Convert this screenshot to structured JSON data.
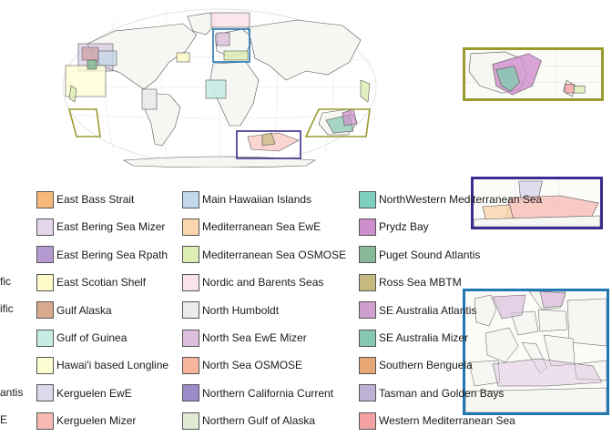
{
  "legend": {
    "clipped_left": [
      "fic",
      "ific",
      "antis",
      "E"
    ],
    "columns": [
      [
        {
          "label": "East Bass Strait",
          "color": "#f7b97a"
        },
        {
          "label": "East Bering Sea Mizer",
          "color": "#e4d5eb"
        },
        {
          "label": "East Bering Sea Rpath",
          "color": "#b59ad1"
        },
        {
          "label": "East Scotian Shelf",
          "color": "#fdfac8"
        },
        {
          "label": "Gulf Alaska",
          "color": "#d9a98f"
        },
        {
          "label": "Gulf of Guinea",
          "color": "#c7ece3"
        },
        {
          "label": "Hawai'i based Longline",
          "color": "#fefed3"
        },
        {
          "label": "Kerguelen EwE",
          "color": "#ddd9ec"
        },
        {
          "label": "Kerguelen Mizer",
          "color": "#f7b9b3"
        }
      ],
      [
        {
          "label": "Main Hawaiian Islands",
          "color": "#c3d8ea"
        },
        {
          "label": "Mediterranean Sea EwE",
          "color": "#fbd6ad"
        },
        {
          "label": "Mediterranean Sea OSMOSE",
          "color": "#dceeb1"
        },
        {
          "label": "Nordic and Barents Seas",
          "color": "#fbe3ea"
        },
        {
          "label": "North Humboldt",
          "color": "#ebebeb"
        },
        {
          "label": "North Sea EwE Mizer",
          "color": "#dcbfdd"
        },
        {
          "label": "North Sea OSMOSE",
          "color": "#f7b69c"
        },
        {
          "label": "Northern California Current",
          "color": "#9a8cc8"
        },
        {
          "label": "Northern Gulf of Alaska",
          "color": "#e1ead3"
        }
      ],
      [
        {
          "label": "NorthWestern Mediterranean Sea",
          "color": "#7fcfbf"
        },
        {
          "label": "Prydz Bay",
          "color": "#cf8fcc"
        },
        {
          "label": "Puget Sound Atlantis",
          "color": "#87b998"
        },
        {
          "label": "Ross Sea MBTM",
          "color": "#c6b97f"
        },
        {
          "label": "SE Australia Atlantis",
          "color": "#cf9fcf"
        },
        {
          "label": "SE Australia Mizer",
          "color": "#86c7b3"
        },
        {
          "label": "Southern Benguela",
          "color": "#e8a876"
        },
        {
          "label": "Tasman and Golden Bays",
          "color": "#bbb2d6"
        },
        {
          "label": "Western Mediterranean Sea",
          "color": "#f4a1a3"
        }
      ]
    ]
  },
  "map_colors": {
    "land": "#f6f6f2",
    "coast": "#555555",
    "graticule": "#dcdcdc",
    "inset_oceania_border": "#9a9a2e",
    "inset_antarctic_border": "#3a2d8f",
    "inset_europe_border": "#1f77b4"
  }
}
